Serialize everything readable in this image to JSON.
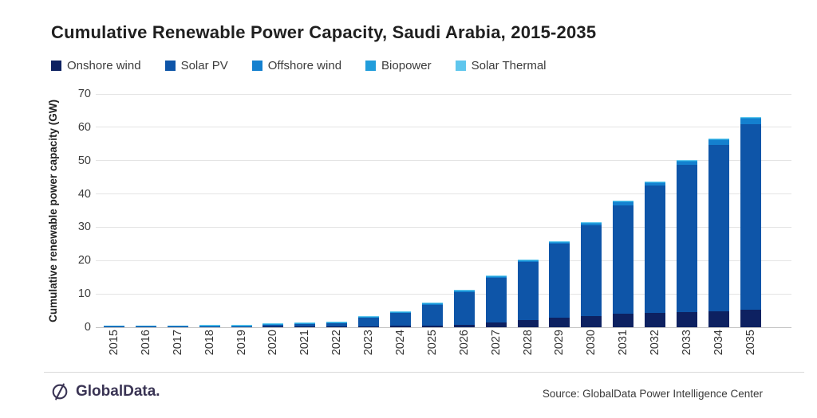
{
  "title": "Cumulative Renewable Power Capacity, Saudi Arabia, 2015-2035",
  "footer": {
    "logo_text": "GlobalData.",
    "source": "Source: GlobalData Power Intelligence Center"
  },
  "colors": {
    "onshore_wind": "#0d2161",
    "solar_pv": "#0e55a8",
    "offshore_wind": "#1480cf",
    "biopower": "#219ddb",
    "solar_thermal": "#5fc6ed",
    "gridline": "#e4e4e4",
    "logo": "#3a3454"
  },
  "chart_data": {
    "type": "bar",
    "stacked": true,
    "title": "Cumulative Renewable Power Capacity, Saudi Arabia, 2015-2035",
    "xlabel": "",
    "ylabel": "Cumulative renewable power capacity (GW)",
    "ylim": [
      0,
      70
    ],
    "ytick_step": 10,
    "ytick_labels": [
      "0",
      "10",
      "20",
      "30",
      "40",
      "50",
      "60",
      "70"
    ],
    "grid": true,
    "legend_position": "top",
    "categories": [
      "2015",
      "2016",
      "2017",
      "2018",
      "2019",
      "2020",
      "2021",
      "2022",
      "2023",
      "2024",
      "2025",
      "2026",
      "2027",
      "2028",
      "2029",
      "2030",
      "2031",
      "2032",
      "2033",
      "2034",
      "2035"
    ],
    "series": [
      {
        "name": "Onshore wind",
        "color": "#0d2161",
        "values": [
          0,
          0,
          0,
          0,
          0,
          0.05,
          0.05,
          0.05,
          0.3,
          0.4,
          0.5,
          0.8,
          1.4,
          2.1,
          2.8,
          3.4,
          4.0,
          4.3,
          4.5,
          4.9,
          5.2
        ]
      },
      {
        "name": "Solar PV",
        "color": "#0e55a8",
        "values": [
          0.12,
          0.15,
          0.15,
          0.1,
          0.15,
          0.45,
          0.8,
          0.9,
          2.6,
          3.8,
          6.2,
          9.6,
          13.4,
          17.5,
          22.3,
          27.2,
          32.6,
          38.2,
          44.3,
          49.9,
          55.8
        ]
      },
      {
        "name": "Offshore wind",
        "color": "#1480cf",
        "values": [
          0,
          0,
          0,
          0,
          0,
          0,
          0,
          0,
          0,
          0,
          0.1,
          0.2,
          0.2,
          0.2,
          0.3,
          0.4,
          0.8,
          0.8,
          0.9,
          1.4,
          1.7
        ]
      },
      {
        "name": "Biopower",
        "color": "#219ddb",
        "values": [
          0.03,
          0.03,
          0.03,
          0.05,
          0.05,
          0.05,
          0.05,
          0.05,
          0.1,
          0.1,
          0.1,
          0.1,
          0.1,
          0.1,
          0.1,
          0.1,
          0.2,
          0.2,
          0.2,
          0.2,
          0.2
        ]
      },
      {
        "name": "Solar Thermal",
        "color": "#5fc6ed",
        "values": [
          0,
          0,
          0,
          0.15,
          0.15,
          0.05,
          0.05,
          0.05,
          0.05,
          0.05,
          0.1,
          0.1,
          0.1,
          0.1,
          0.1,
          0.1,
          0.1,
          0.1,
          0.1,
          0.1,
          0.1
        ]
      }
    ],
    "totals": null
  }
}
